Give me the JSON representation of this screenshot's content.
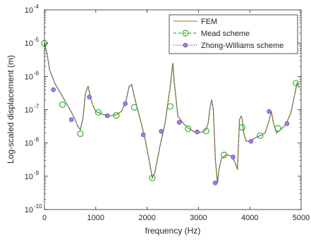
{
  "chart_data": {
    "type": "line",
    "xlabel": "frequency (Hz)",
    "ylabel": "Log-scaled displacement (m)",
    "xlim": [
      0,
      5000
    ],
    "ylim_exponent": [
      -10,
      -4
    ],
    "y_scale": "log",
    "grid": false,
    "legend_position": "top-right",
    "x_ticks": [
      {
        "value": 0,
        "label": "0"
      },
      {
        "value": 1000,
        "label": "1000"
      },
      {
        "value": 2000,
        "label": "2000"
      },
      {
        "value": 3000,
        "label": "3000"
      },
      {
        "value": 4000,
        "label": "4000"
      },
      {
        "value": 5000,
        "label": "5000"
      }
    ],
    "y_ticks": [
      {
        "exp": -4,
        "base": "10",
        "sup": "-4"
      },
      {
        "exp": -5,
        "base": "10",
        "sup": "-5"
      },
      {
        "exp": -6,
        "base": "10",
        "sup": "-6"
      },
      {
        "exp": -7,
        "base": "10",
        "sup": "-7"
      },
      {
        "exp": -8,
        "base": "10",
        "sup": "-8"
      },
      {
        "exp": -9,
        "base": "10",
        "sup": "-9"
      },
      {
        "exp": -10,
        "base": "10",
        "sup": "-10"
      }
    ],
    "series": [
      {
        "name": "FEM",
        "color": "#e07b39",
        "style": "solid",
        "marker": "none",
        "points": [
          [
            0,
            -5
          ],
          [
            50,
            -5.3
          ],
          [
            100,
            -5.8
          ],
          [
            200,
            -6.2
          ],
          [
            350,
            -6.6
          ],
          [
            500,
            -7
          ],
          [
            600,
            -7.3
          ],
          [
            650,
            -7.5
          ],
          [
            700,
            -7.6
          ],
          [
            750,
            -7.25
          ],
          [
            800,
            -6.5
          ],
          [
            850,
            -6.3
          ],
          [
            900,
            -6.65
          ],
          [
            950,
            -6.9
          ],
          [
            1000,
            -7.05
          ],
          [
            1100,
            -7.12
          ],
          [
            1200,
            -7.17
          ],
          [
            1300,
            -7.18
          ],
          [
            1400,
            -7.15
          ],
          [
            1500,
            -7.05
          ],
          [
            1580,
            -6.8
          ],
          [
            1650,
            -6.3
          ],
          [
            1700,
            -6.25
          ],
          [
            1750,
            -6.6
          ],
          [
            1850,
            -7.2
          ],
          [
            1950,
            -7.8
          ],
          [
            2050,
            -8.6
          ],
          [
            2100,
            -9.05
          ],
          [
            2150,
            -8.9
          ],
          [
            2250,
            -8.1
          ],
          [
            2350,
            -7.4
          ],
          [
            2450,
            -6.3
          ],
          [
            2500,
            -5.6
          ],
          [
            2530,
            -6.2
          ],
          [
            2600,
            -7.2
          ],
          [
            2700,
            -7.4
          ],
          [
            2800,
            -7.55
          ],
          [
            2900,
            -7.65
          ],
          [
            3000,
            -7.68
          ],
          [
            3050,
            -7.68
          ],
          [
            3100,
            -7.65
          ],
          [
            3150,
            -7.6
          ],
          [
            3190,
            -7.4
          ],
          [
            3230,
            -6.9
          ],
          [
            3260,
            -6.7
          ],
          [
            3290,
            -7.0
          ],
          [
            3330,
            -8.5
          ],
          [
            3370,
            -9.2
          ],
          [
            3400,
            -8.8
          ],
          [
            3450,
            -8.45
          ],
          [
            3550,
            -8.35
          ],
          [
            3650,
            -8.4
          ],
          [
            3720,
            -8.6
          ],
          [
            3760,
            -8.8
          ],
          [
            3800,
            -7.3
          ],
          [
            3830,
            -7.2
          ],
          [
            3850,
            -7.25
          ],
          [
            3880,
            -7.7
          ],
          [
            3930,
            -7.95
          ],
          [
            4000,
            -7.95
          ],
          [
            4100,
            -7.85
          ],
          [
            4200,
            -7.78
          ],
          [
            4300,
            -7.7
          ],
          [
            4380,
            -7.3
          ],
          [
            4420,
            -7.05
          ],
          [
            4460,
            -7.4
          ],
          [
            4520,
            -7.7
          ],
          [
            4600,
            -7.6
          ],
          [
            4700,
            -7.45
          ],
          [
            4800,
            -7.1
          ],
          [
            4880,
            -6.5
          ],
          [
            4920,
            -6.2
          ],
          [
            4960,
            -6.35
          ]
        ]
      },
      {
        "name": "Mead scheme",
        "color": "#2fb52f",
        "style": "dashed",
        "marker": "open-circle",
        "points": [
          [
            0,
            -5
          ],
          [
            200,
            -6.4
          ],
          [
            350,
            -6.6
          ],
          [
            550,
            -7.2
          ],
          [
            700,
            -7.6
          ],
          [
            1050,
            -7.1
          ],
          [
            1500,
            -7.05
          ],
          [
            1800,
            -7.25
          ],
          [
            2100,
            -9.05
          ],
          [
            2450,
            -6.3
          ],
          [
            2800,
            -7.55
          ],
          [
            3150,
            -7.6
          ],
          [
            3450,
            -8.45
          ],
          [
            3800,
            -7.3
          ],
          [
            4200,
            -7.78
          ],
          [
            4600,
            -7.6
          ],
          [
            4950,
            -6.3
          ]
        ],
        "marker_points": [
          [
            0,
            -5
          ],
          [
            350,
            -6.85
          ],
          [
            700,
            -7.72
          ],
          [
            1050,
            -7.08
          ],
          [
            1400,
            -7.17
          ],
          [
            1750,
            -6.93
          ],
          [
            2100,
            -9.05
          ],
          [
            2450,
            -6.9
          ],
          [
            2800,
            -7.57
          ],
          [
            3150,
            -7.64
          ],
          [
            3500,
            -8.36
          ],
          [
            3850,
            -7.53
          ],
          [
            4200,
            -7.78
          ],
          [
            4550,
            -7.56
          ],
          [
            4900,
            -6.2
          ]
        ]
      },
      {
        "name": "Zhong-Williams scheme",
        "color": "#5b3fb5",
        "style": "dotted",
        "marker": "filled-circle",
        "marker_points": [
          [
            175,
            -6.4
          ],
          [
            525,
            -7.3
          ],
          [
            875,
            -6.62
          ],
          [
            1225,
            -7.18
          ],
          [
            1575,
            -6.82
          ],
          [
            1925,
            -7.75
          ],
          [
            2275,
            -7.65
          ],
          [
            2625,
            -7.38
          ],
          [
            2975,
            -7.67
          ],
          [
            3325,
            -9.2
          ],
          [
            3675,
            -8.42
          ],
          [
            4025,
            -7.95
          ],
          [
            4375,
            -7.05
          ],
          [
            4725,
            -7.42
          ]
        ]
      }
    ]
  }
}
